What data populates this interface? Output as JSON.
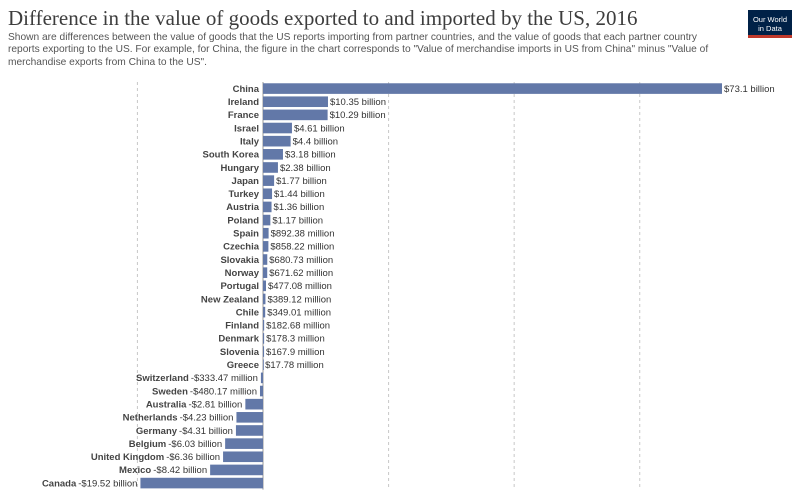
{
  "header": {
    "title": "Difference in the value of goods exported to and imported by the US, 2016",
    "subtitle": "Shown are differences between the value of goods that the US reports importing from partner countries, and the value of goods that each partner country reports exporting to the US. For example, for China, the figure in the chart corresponds to \"Value of merchandise imports in US from China\" minus \"Value of merchandise exports from China to the US\".",
    "logo_line1": "Our World",
    "logo_line2": "in Data"
  },
  "colors": {
    "bar": "#6278a8",
    "grid": "#c8c8c8",
    "logo_bg": "#002147",
    "logo_accent": "#c0392b"
  },
  "chart_data": {
    "type": "bar",
    "orientation": "horizontal",
    "title": "Difference in the value of goods exported to and imported by the US, 2016",
    "grid": true,
    "categories": [
      "China",
      "Ireland",
      "France",
      "Israel",
      "Italy",
      "South Korea",
      "Hungary",
      "Japan",
      "Turkey",
      "Austria",
      "Poland",
      "Spain",
      "Czechia",
      "Slovakia",
      "Norway",
      "Portugal",
      "New Zealand",
      "Chile",
      "Finland",
      "Denmark",
      "Slovenia",
      "Greece",
      "Switzerland",
      "Sweden",
      "Australia",
      "Netherlands",
      "Germany",
      "Belgium",
      "United Kingdom",
      "Mexico",
      "Canada"
    ],
    "values": [
      73.1,
      10.35,
      10.29,
      4.61,
      4.4,
      3.18,
      2.38,
      1.77,
      1.44,
      1.36,
      1.17,
      0.89238,
      0.85822,
      0.68073,
      0.67162,
      0.47708,
      0.38912,
      0.34901,
      0.18268,
      0.1783,
      0.1679,
      0.01778,
      -0.33347,
      -0.48017,
      -2.81,
      -4.23,
      -4.31,
      -6.03,
      -6.36,
      -8.42,
      -19.52
    ],
    "value_labels": [
      "$73.1 billion",
      "$10.35 billion",
      "$10.29 billion",
      "$4.61 billion",
      "$4.4 billion",
      "$3.18 billion",
      "$2.38 billion",
      "$1.77 billion",
      "$1.44 billion",
      "$1.36 billion",
      "$1.17 billion",
      "$892.38 million",
      "$858.22 million",
      "$680.73 million",
      "$671.62 million",
      "$477.08 million",
      "$389.12 million",
      "$349.01 million",
      "$182.68 million",
      "$178.3 million",
      "$167.9 million",
      "$17.78 million",
      "-$333.47 million",
      "-$480.17 million",
      "-$2.81 billion",
      "-$4.23 billion",
      "-$4.31 billion",
      "-$6.03 billion",
      "-$6.36 billion",
      "-$8.42 billion",
      "-$19.52 billion"
    ],
    "unit": "billion US dollars",
    "xlim": [
      -19.52,
      73.1
    ],
    "gridlines_at": [
      -20,
      0,
      20,
      40,
      60
    ]
  }
}
